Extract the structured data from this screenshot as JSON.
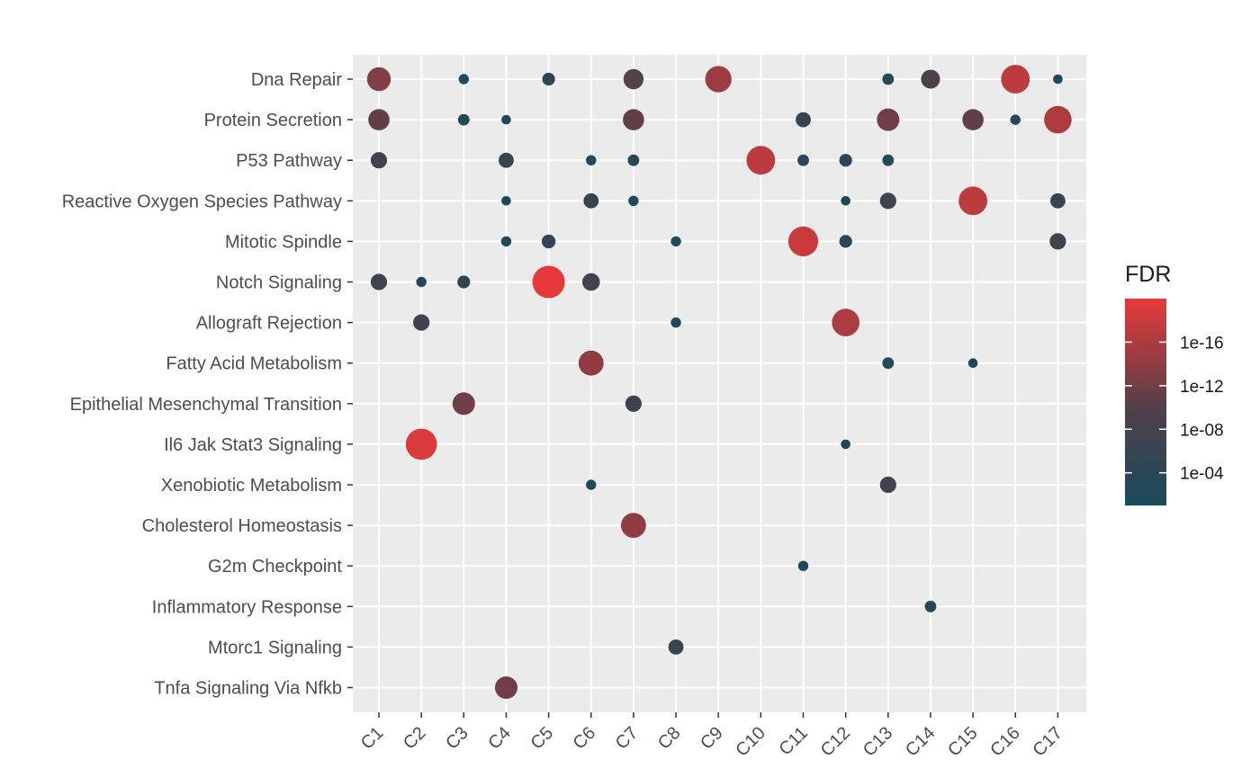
{
  "chart_data": {
    "type": "scatter",
    "title": "",
    "xlabel": "",
    "ylabel": "",
    "x_categories": [
      "C1",
      "C2",
      "C3",
      "C4",
      "C5",
      "C6",
      "C7",
      "C8",
      "C9",
      "C10",
      "C11",
      "C12",
      "C13",
      "C14",
      "C15",
      "C16",
      "C17"
    ],
    "y_categories": [
      "Dna Repair",
      "Protein Secretion",
      "P53 Pathway",
      "Reactive Oxygen Species Pathway",
      "Mitotic Spindle",
      "Notch Signaling",
      "Allograft Rejection",
      "Fatty Acid Metabolism",
      "Epithelial Mesenchymal Transition",
      "Il6 Jak Stat3 Signaling",
      "Xenobiotic Metabolism",
      "Cholesterol Homeostasis",
      "G2m Checkpoint",
      "Inflammatory Response",
      "Mtorc1 Signaling",
      "Tnfa Signaling Via Nfkb"
    ],
    "color_scale": {
      "name": "FDR",
      "low_color": "#1a4a5c",
      "mid_color": "#4d404a",
      "high_color": "#e8393a",
      "log10_range": [
        -1,
        -20
      ],
      "breaks": [
        {
          "label": "1e-04",
          "log10": -4
        },
        {
          "label": "1e-08",
          "log10": -8
        },
        {
          "label": "1e-12",
          "log10": -12
        },
        {
          "label": "1e-16",
          "log10": -16
        }
      ]
    },
    "grid": true,
    "legend_position": "right",
    "points": [
      {
        "x": "C1",
        "y": "Dna Repair",
        "fdr_log10": -13
      },
      {
        "x": "C3",
        "y": "Dna Repair",
        "fdr_log10": -2
      },
      {
        "x": "C5",
        "y": "Dna Repair",
        "fdr_log10": -4
      },
      {
        "x": "C7",
        "y": "Dna Repair",
        "fdr_log10": -10
      },
      {
        "x": "C9",
        "y": "Dna Repair",
        "fdr_log10": -15
      },
      {
        "x": "C13",
        "y": "Dna Repair",
        "fdr_log10": -3
      },
      {
        "x": "C14",
        "y": "Dna Repair",
        "fdr_log10": -9
      },
      {
        "x": "C16",
        "y": "Dna Repair",
        "fdr_log10": -17
      },
      {
        "x": "C17",
        "y": "Dna Repair",
        "fdr_log10": -1.5
      },
      {
        "x": "C1",
        "y": "Protein Secretion",
        "fdr_log10": -11
      },
      {
        "x": "C3",
        "y": "Protein Secretion",
        "fdr_log10": -3
      },
      {
        "x": "C4",
        "y": "Protein Secretion",
        "fdr_log10": -1.5
      },
      {
        "x": "C7",
        "y": "Protein Secretion",
        "fdr_log10": -11
      },
      {
        "x": "C11",
        "y": "Protein Secretion",
        "fdr_log10": -6
      },
      {
        "x": "C13",
        "y": "Protein Secretion",
        "fdr_log10": -12
      },
      {
        "x": "C15",
        "y": "Protein Secretion",
        "fdr_log10": -11
      },
      {
        "x": "C16",
        "y": "Protein Secretion",
        "fdr_log10": -2
      },
      {
        "x": "C17",
        "y": "Protein Secretion",
        "fdr_log10": -16
      },
      {
        "x": "C1",
        "y": "P53 Pathway",
        "fdr_log10": -7
      },
      {
        "x": "C4",
        "y": "P53 Pathway",
        "fdr_log10": -6
      },
      {
        "x": "C6",
        "y": "P53 Pathway",
        "fdr_log10": -2
      },
      {
        "x": "C7",
        "y": "P53 Pathway",
        "fdr_log10": -3
      },
      {
        "x": "C10",
        "y": "P53 Pathway",
        "fdr_log10": -17
      },
      {
        "x": "C11",
        "y": "P53 Pathway",
        "fdr_log10": -3
      },
      {
        "x": "C12",
        "y": "P53 Pathway",
        "fdr_log10": -4
      },
      {
        "x": "C13",
        "y": "P53 Pathway",
        "fdr_log10": -3
      },
      {
        "x": "C4",
        "y": "Reactive Oxygen Species Pathway",
        "fdr_log10": -1.5
      },
      {
        "x": "C6",
        "y": "Reactive Oxygen Species Pathway",
        "fdr_log10": -6
      },
      {
        "x": "C7",
        "y": "Reactive Oxygen Species Pathway",
        "fdr_log10": -2
      },
      {
        "x": "C12",
        "y": "Reactive Oxygen Species Pathway",
        "fdr_log10": -1.5
      },
      {
        "x": "C13",
        "y": "Reactive Oxygen Species Pathway",
        "fdr_log10": -7
      },
      {
        "x": "C15",
        "y": "Reactive Oxygen Species Pathway",
        "fdr_log10": -17
      },
      {
        "x": "C17",
        "y": "Reactive Oxygen Species Pathway",
        "fdr_log10": -6
      },
      {
        "x": "C4",
        "y": "Mitotic Spindle",
        "fdr_log10": -2
      },
      {
        "x": "C5",
        "y": "Mitotic Spindle",
        "fdr_log10": -5
      },
      {
        "x": "C8",
        "y": "Mitotic Spindle",
        "fdr_log10": -2
      },
      {
        "x": "C11",
        "y": "Mitotic Spindle",
        "fdr_log10": -18
      },
      {
        "x": "C12",
        "y": "Mitotic Spindle",
        "fdr_log10": -4
      },
      {
        "x": "C17",
        "y": "Mitotic Spindle",
        "fdr_log10": -7
      },
      {
        "x": "C1",
        "y": "Notch Signaling",
        "fdr_log10": -7
      },
      {
        "x": "C2",
        "y": "Notch Signaling",
        "fdr_log10": -2
      },
      {
        "x": "C3",
        "y": "Notch Signaling",
        "fdr_log10": -4
      },
      {
        "x": "C5",
        "y": "Notch Signaling",
        "fdr_log10": -20
      },
      {
        "x": "C6",
        "y": "Notch Signaling",
        "fdr_log10": -8
      },
      {
        "x": "C2",
        "y": "Allograft Rejection",
        "fdr_log10": -7
      },
      {
        "x": "C8",
        "y": "Allograft Rejection",
        "fdr_log10": -2
      },
      {
        "x": "C12",
        "y": "Allograft Rejection",
        "fdr_log10": -16
      },
      {
        "x": "C6",
        "y": "Fatty Acid Metabolism",
        "fdr_log10": -14
      },
      {
        "x": "C13",
        "y": "Fatty Acid Metabolism",
        "fdr_log10": -3
      },
      {
        "x": "C15",
        "y": "Fatty Acid Metabolism",
        "fdr_log10": -1.5
      },
      {
        "x": "C3",
        "y": "Epithelial Mesenchymal Transition",
        "fdr_log10": -12
      },
      {
        "x": "C7",
        "y": "Epithelial Mesenchymal Transition",
        "fdr_log10": -7
      },
      {
        "x": "C2",
        "y": "Il6 Jak Stat3 Signaling",
        "fdr_log10": -19
      },
      {
        "x": "C12",
        "y": "Il6 Jak Stat3 Signaling",
        "fdr_log10": -1.5
      },
      {
        "x": "C6",
        "y": "Xenobiotic Metabolism",
        "fdr_log10": -2
      },
      {
        "x": "C13",
        "y": "Xenobiotic Metabolism",
        "fdr_log10": -7
      },
      {
        "x": "C7",
        "y": "Cholesterol Homeostasis",
        "fdr_log10": -14
      },
      {
        "x": "C11",
        "y": "G2m Checkpoint",
        "fdr_log10": -2
      },
      {
        "x": "C14",
        "y": "Inflammatory Response",
        "fdr_log10": -3
      },
      {
        "x": "C8",
        "y": "Mtorc1 Signaling",
        "fdr_log10": -6
      },
      {
        "x": "C4",
        "y": "Tnfa Signaling Via Nfkb",
        "fdr_log10": -12
      }
    ]
  }
}
